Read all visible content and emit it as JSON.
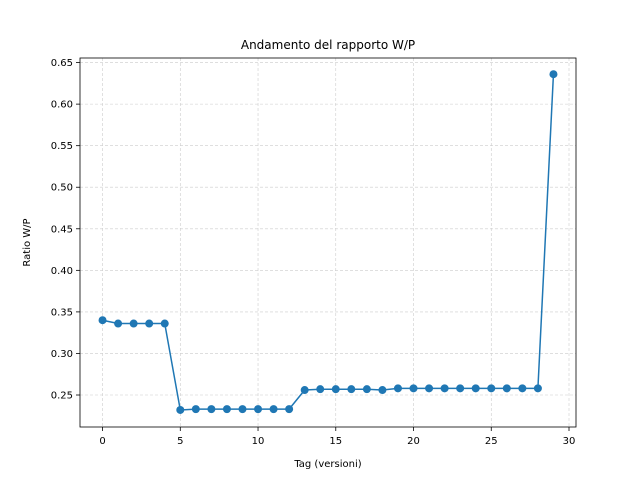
{
  "chart_data": {
    "type": "line",
    "title": "Andamento del rapporto W/P",
    "xlabel": "Tag (versioni)",
    "ylabel": "Ratio W/P",
    "xlim": [
      -1.45,
      30.45
    ],
    "ylim": [
      0.2115,
      0.6555
    ],
    "xticks": [
      0,
      5,
      10,
      15,
      20,
      25,
      30
    ],
    "xtick_labels": [
      "0",
      "5",
      "10",
      "15",
      "20",
      "25",
      "30"
    ],
    "yticks": [
      0.25,
      0.3,
      0.35,
      0.4,
      0.45,
      0.5,
      0.55,
      0.6,
      0.65
    ],
    "ytick_labels": [
      "0.25",
      "0.30",
      "0.35",
      "0.40",
      "0.45",
      "0.50",
      "0.55",
      "0.60",
      "0.65"
    ],
    "grid": true,
    "marker": "circle",
    "series": [
      {
        "color": "#1f77b4",
        "x": [
          0,
          1,
          2,
          3,
          4,
          5,
          6,
          7,
          8,
          9,
          10,
          11,
          12,
          13,
          14,
          15,
          16,
          17,
          18,
          19,
          20,
          21,
          22,
          23,
          24,
          25,
          26,
          27,
          28,
          29
        ],
        "y": [
          0.34,
          0.336,
          0.336,
          0.336,
          0.336,
          0.232,
          0.233,
          0.233,
          0.233,
          0.233,
          0.233,
          0.233,
          0.233,
          0.256,
          0.257,
          0.257,
          0.257,
          0.257,
          0.256,
          0.258,
          0.258,
          0.258,
          0.258,
          0.258,
          0.258,
          0.258,
          0.258,
          0.258,
          0.258,
          0.636
        ]
      }
    ]
  }
}
